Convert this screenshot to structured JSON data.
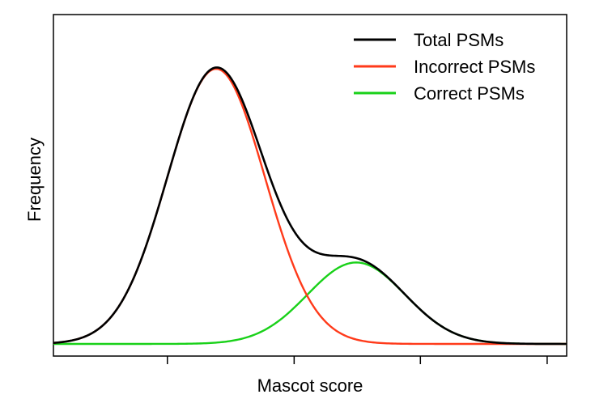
{
  "chart_data": {
    "type": "line",
    "title": "",
    "xlabel": "Mascot score",
    "ylabel": "Frequency",
    "x_tick_labels_shown": false,
    "y_ticks_shown": false,
    "grid": false,
    "legend_position": "top-right",
    "series": [
      {
        "name": "Total PSMs",
        "color": "#000000",
        "description": "sum of incorrect and correct distributions",
        "components": [
          "Incorrect PSMs",
          "Correct PSMs"
        ]
      },
      {
        "name": "Incorrect PSMs",
        "color": "#ff3a1a",
        "distribution": "gaussian",
        "center_x": 0.317,
        "sigma_x": 0.095,
        "relative_peak": 1.0
      },
      {
        "name": "Correct PSMs",
        "color": "#19d119",
        "distribution": "gaussian",
        "center_x": 0.59,
        "sigma_x": 0.095,
        "relative_peak": 0.296
      }
    ],
    "xlim": [
      0,
      1
    ],
    "ylim": [
      0,
      1.09
    ]
  }
}
